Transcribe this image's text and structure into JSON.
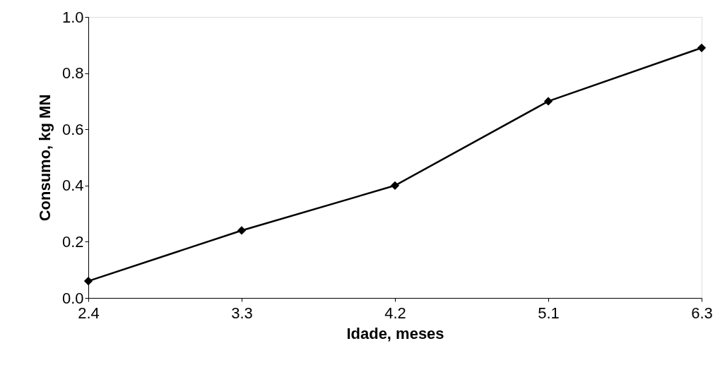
{
  "chart_data": {
    "type": "line",
    "xlabel": "Idade, meses",
    "ylabel": "Consumo, kg MN",
    "categories": [
      "2.4",
      "3.3",
      "4.2",
      "5.1",
      "6.3"
    ],
    "values": [
      0.06,
      0.24,
      0.4,
      0.7,
      0.89
    ],
    "color": "#000000",
    "marker": "diamond",
    "line_style": "solid",
    "grid": false,
    "ylim": [
      0,
      1.0
    ],
    "yticks": [
      {
        "value": 0,
        "label": "0.0"
      },
      0.2,
      0.4,
      0.6,
      0.8,
      {
        "value": 1.0,
        "label": "1.0"
      }
    ]
  }
}
